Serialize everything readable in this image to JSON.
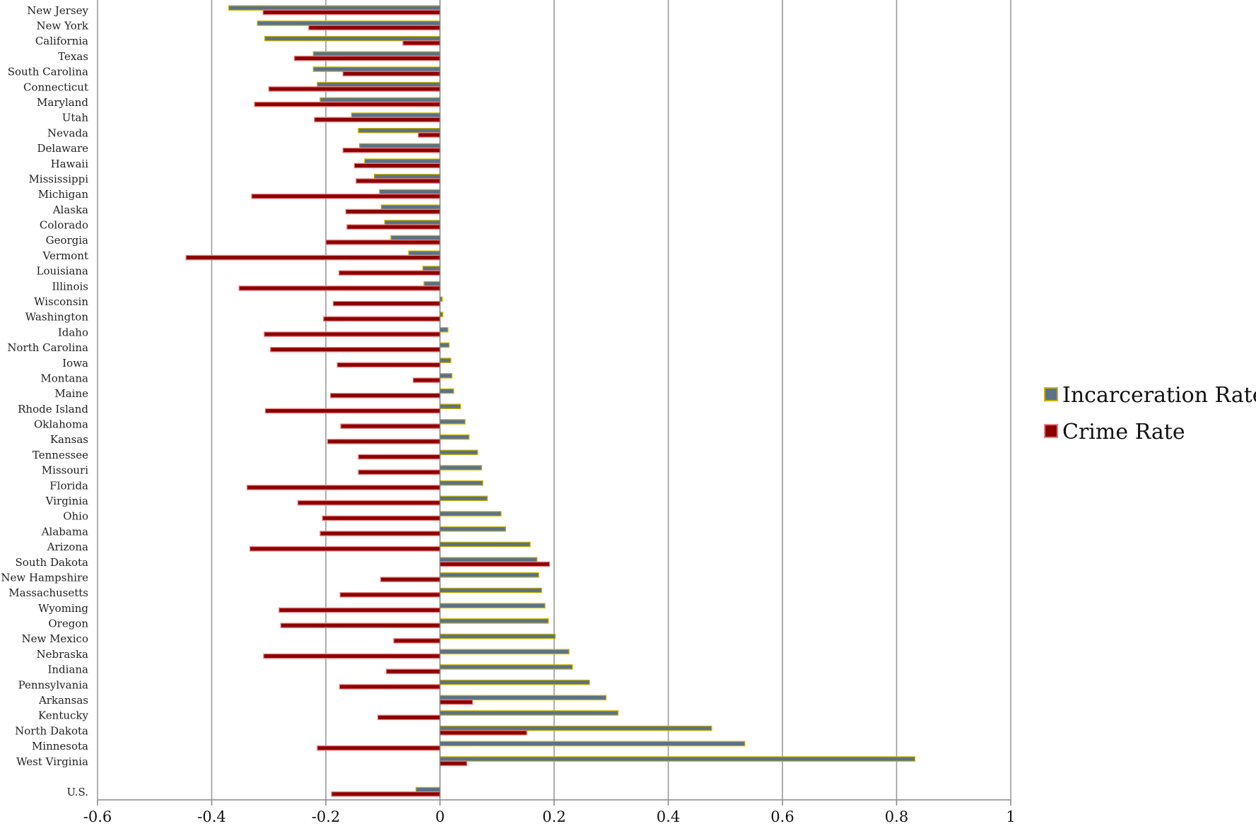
{
  "chart_data": {
    "type": "bar",
    "orientation": "horizontal",
    "categories": [
      "New Jersey",
      "New York",
      "California",
      "Texas",
      "South Carolina",
      "Connecticut",
      "Maryland",
      "Utah",
      "Nevada",
      "Delaware",
      "Hawaii",
      "Mississippi",
      "Michigan",
      "Alaska",
      "Colorado",
      "Georgia",
      "Vermont",
      "Louisiana",
      "Illinois",
      "Wisconsin",
      "Washington",
      "Idaho",
      "North Carolina",
      "Iowa",
      "Montana",
      "Maine",
      "Rhode Island",
      "Oklahoma",
      "Kansas",
      "Tennessee",
      "Missouri",
      "Florida",
      "Virginia",
      "Ohio",
      "Alabama",
      "Arizona",
      "South Dakota",
      "New Hampshire",
      "Massachusetts",
      "Wyoming",
      "Oregon",
      "New Mexico",
      "Nebraska",
      "Indiana",
      "Pennsylvania",
      "Arkansas",
      "Kentucky",
      "North Dakota",
      "Minnesota",
      "West Virginia",
      "",
      "U.S."
    ],
    "series": [
      {
        "name": "Incarceration Rate",
        "color": "#5b7189",
        "border": "#c8b400",
        "values": [
          -0.37,
          -0.32,
          -0.307,
          -0.222,
          -0.222,
          -0.215,
          -0.21,
          -0.155,
          -0.143,
          -0.141,
          -0.132,
          -0.115,
          -0.106,
          -0.103,
          -0.097,
          -0.086,
          -0.055,
          -0.03,
          -0.028,
          0.004,
          0.005,
          0.014,
          0.016,
          0.019,
          0.021,
          0.024,
          0.036,
          0.044,
          0.051,
          0.066,
          0.073,
          0.075,
          0.083,
          0.107,
          0.115,
          0.158,
          0.17,
          0.173,
          0.178,
          0.184,
          0.19,
          0.202,
          0.226,
          0.232,
          0.262,
          0.291,
          0.312,
          0.476,
          0.534,
          0.832,
          null,
          -0.042
        ]
      },
      {
        "name": "Crime Rate",
        "color": "#8b0000",
        "border": "#e88080",
        "values": [
          -0.31,
          -0.23,
          -0.065,
          -0.255,
          -0.17,
          -0.3,
          -0.325,
          -0.22,
          -0.038,
          -0.17,
          -0.15,
          -0.147,
          -0.33,
          -0.165,
          -0.163,
          -0.2,
          -0.445,
          -0.177,
          -0.352,
          -0.187,
          -0.204,
          -0.308,
          -0.297,
          -0.18,
          -0.047,
          -0.192,
          -0.306,
          -0.174,
          -0.197,
          -0.143,
          -0.143,
          -0.338,
          -0.249,
          -0.206,
          -0.21,
          -0.333,
          0.192,
          -0.104,
          -0.175,
          -0.282,
          -0.279,
          -0.081,
          -0.309,
          -0.094,
          -0.176,
          0.057,
          -0.109,
          0.152,
          -0.215,
          0.047,
          null,
          -0.19
        ]
      }
    ],
    "xlim": [
      -0.6,
      1
    ],
    "xticks": [
      -0.6,
      -0.4,
      -0.2,
      0,
      0.2,
      0.4,
      0.6,
      0.8,
      1
    ],
    "xtick_labels": [
      "-0.6",
      "-0.4",
      "-0.2",
      "0",
      "0.2",
      "0.4",
      "0.6",
      "0.8",
      "1"
    ],
    "grid": "vertical",
    "legend_position": "right",
    "title": "",
    "xlabel": "",
    "ylabel": ""
  }
}
